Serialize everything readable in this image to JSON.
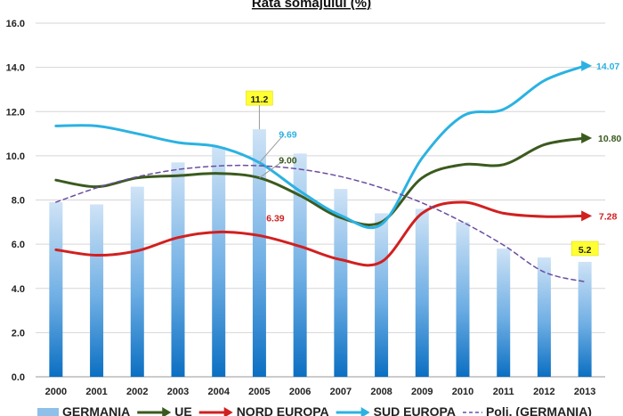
{
  "chart_data": {
    "type": "bar",
    "title": "Rata somajului (%)",
    "xlabel": "",
    "ylabel": "",
    "categories": [
      "2000",
      "2001",
      "2002",
      "2003",
      "2004",
      "2005",
      "2006",
      "2007",
      "2008",
      "2009",
      "2010",
      "2011",
      "2012",
      "2013"
    ],
    "ylim": [
      0,
      16
    ],
    "yticks": [
      "0.0",
      "2.0",
      "4.0",
      "6.0",
      "8.0",
      "10.0",
      "12.0",
      "14.0",
      "16.0"
    ],
    "grid": true,
    "legend_position": "bottom",
    "series": [
      {
        "name": "GERMANIA",
        "kind": "bar",
        "color": "#1f7fce",
        "values": [
          7.9,
          7.8,
          8.6,
          9.7,
          10.4,
          11.2,
          10.1,
          8.5,
          7.4,
          7.6,
          7.0,
          5.8,
          5.4,
          5.2
        ]
      },
      {
        "name": "UE",
        "kind": "line",
        "color": "#3b5a1e",
        "values": [
          8.9,
          8.6,
          9.0,
          9.1,
          9.2,
          9.0,
          8.2,
          7.2,
          7.0,
          9.0,
          9.6,
          9.6,
          10.5,
          10.8
        ]
      },
      {
        "name": "NORD EUROPA",
        "kind": "line",
        "color": "#d12020",
        "values": [
          5.75,
          5.5,
          5.7,
          6.3,
          6.55,
          6.39,
          5.9,
          5.3,
          5.2,
          7.4,
          7.9,
          7.4,
          7.25,
          7.28
        ]
      },
      {
        "name": "SUD EUROPA",
        "kind": "line",
        "color": "#2bb2e2",
        "values": [
          11.35,
          11.35,
          11.0,
          10.6,
          10.4,
          9.69,
          8.4,
          7.3,
          6.9,
          9.9,
          11.8,
          12.1,
          13.4,
          14.07
        ]
      },
      {
        "name": "Poli. (GERMANIA)",
        "kind": "trend",
        "color": "#6b4ea0",
        "values": [
          7.9,
          8.55,
          9.05,
          9.38,
          9.54,
          9.55,
          9.39,
          9.06,
          8.55,
          7.87,
          7.0,
          5.96,
          4.74,
          4.3
        ]
      }
    ],
    "annotations": [
      {
        "text": "11.2",
        "series": "GERMANIA",
        "index": 5,
        "highlight": true
      },
      {
        "text": "5.2",
        "series": "GERMANIA",
        "index": 13,
        "highlight": true
      },
      {
        "text": "9.69",
        "series": "SUD EUROPA",
        "index": 5
      },
      {
        "text": "9.00",
        "series": "UE",
        "index": 5
      },
      {
        "text": "6.39",
        "series": "NORD EUROPA",
        "index": 5
      },
      {
        "text": "14.07",
        "series": "SUD EUROPA",
        "index": 13
      },
      {
        "text": "10.80",
        "series": "UE",
        "index": 13
      },
      {
        "text": "7.28",
        "series": "NORD EUROPA",
        "index": 13
      }
    ]
  }
}
